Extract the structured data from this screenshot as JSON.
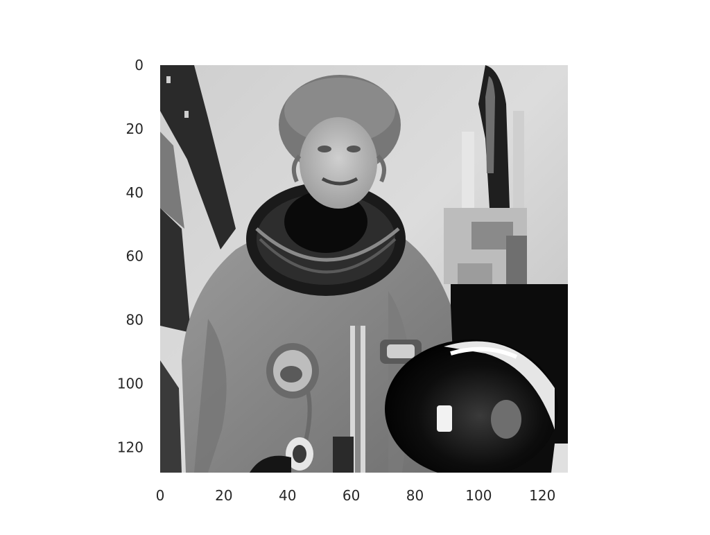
{
  "figure": {
    "background": "#ffffff",
    "image_description_key": "grayscale-astronaut-photo",
    "colors": {
      "tick_text": "#262626",
      "bg_light": "#d8d8d8",
      "bg_mid": "#b4b4b4",
      "suit": "#8c8c8c",
      "suit_dark": "#6a6a6a",
      "dark": "#111111",
      "black": "#050505",
      "skin": "#bdbdbd",
      "hair": "#7a7a7a",
      "white": "#f4f4f4"
    }
  },
  "chart_data": {
    "type": "heatmap",
    "colormap": "gray",
    "grid": false,
    "xlim": [
      0,
      128
    ],
    "ylim": [
      128,
      0
    ],
    "xticks": [
      0,
      20,
      40,
      60,
      80,
      100,
      120
    ],
    "yticks": [
      0,
      20,
      40,
      60,
      80,
      100,
      120
    ],
    "xtick_labels": [
      "0",
      "20",
      "40",
      "60",
      "80",
      "100",
      "120"
    ],
    "ytick_labels": [
      "0",
      "20",
      "40",
      "60",
      "80",
      "100",
      "120"
    ],
    "title": "",
    "xlabel": "",
    "ylabel": ""
  }
}
